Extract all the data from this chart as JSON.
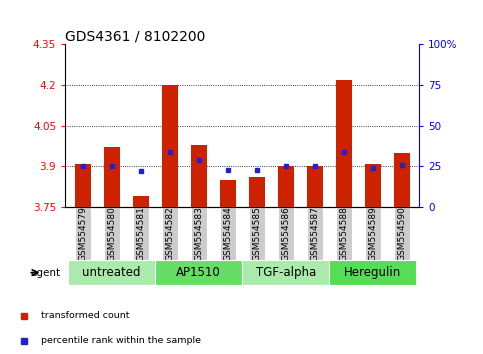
{
  "title": "GDS4361 / 8102200",
  "samples": [
    "GSM554579",
    "GSM554580",
    "GSM554581",
    "GSM554582",
    "GSM554583",
    "GSM554584",
    "GSM554585",
    "GSM554586",
    "GSM554587",
    "GSM554588",
    "GSM554589",
    "GSM554590"
  ],
  "red_values": [
    3.91,
    3.97,
    3.79,
    4.2,
    3.98,
    3.85,
    3.86,
    3.9,
    3.9,
    4.22,
    3.91,
    3.95
  ],
  "blue_values": [
    25,
    25,
    22,
    34,
    29,
    23,
    23,
    25,
    25,
    34,
    24,
    26
  ],
  "ymin": 3.75,
  "ymax": 4.35,
  "yticks": [
    3.75,
    3.9,
    4.05,
    4.2,
    4.35
  ],
  "ytick_labels": [
    "3.75",
    "3.9",
    "4.05",
    "4.2",
    "4.35"
  ],
  "y2min": 0,
  "y2max": 100,
  "y2ticks": [
    0,
    25,
    50,
    75,
    100
  ],
  "y2tick_labels": [
    "0",
    "25",
    "50",
    "75",
    "100%"
  ],
  "grid_lines": [
    3.9,
    4.05,
    4.2
  ],
  "bar_color": "#cc2200",
  "dot_color": "#2222cc",
  "base": 3.75,
  "groups": [
    {
      "label": "untreated",
      "start": 0,
      "end": 3,
      "color": "#aaeaaa"
    },
    {
      "label": "AP1510",
      "start": 3,
      "end": 6,
      "color": "#66dd66"
    },
    {
      "label": "TGF-alpha",
      "start": 6,
      "end": 9,
      "color": "#aaeaaa"
    },
    {
      "label": "Heregulin",
      "start": 9,
      "end": 12,
      "color": "#55dd55"
    }
  ],
  "legend_items": [
    {
      "label": "transformed count",
      "color": "#cc2200"
    },
    {
      "label": "percentile rank within the sample",
      "color": "#2222cc"
    }
  ],
  "agent_label": "agent",
  "title_fontsize": 10,
  "tick_fontsize": 7.5,
  "sample_fontsize": 6.5,
  "group_fontsize": 8.5
}
